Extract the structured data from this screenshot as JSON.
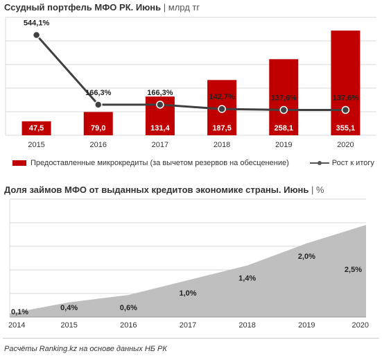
{
  "header": {
    "title1": "Ссудный портфель МФО РК. Июнь",
    "unit1": "млрд тг",
    "title2": "Доля займов МФО от выданных кредитов экономике страны. Июнь",
    "unit2": "%"
  },
  "legend": {
    "bar": "Предоставленные микрокредиты (за вычетом резервов на обесценение)",
    "line": "Рост к итогу"
  },
  "footer": {
    "source": "Расчёты Ranking.kz на основе данных НБ РК"
  },
  "colors": {
    "bar": "#c00000",
    "line": "#404040",
    "area": "#bfbfbf",
    "grid": "#d9d9d9"
  },
  "chart_data": [
    {
      "type": "bar",
      "categories": [
        "2015",
        "2016",
        "2017",
        "2018",
        "2019",
        "2020"
      ],
      "series": [
        {
          "name": "Предоставленные микрокредиты (за вычетом резервов на обесценение)",
          "type": "bar",
          "values": [
            47.5,
            79.0,
            131.4,
            187.5,
            258.1,
            355.1
          ],
          "labels": [
            "47,5",
            "79,0",
            "131,4",
            "187,5",
            "258,1",
            "355,1"
          ]
        },
        {
          "name": "Рост к итогу",
          "type": "line",
          "values": [
            544.1,
            166.3,
            166.3,
            142.7,
            137.6,
            137.6
          ],
          "labels": [
            "544,1%",
            "166,3%",
            "166,3%",
            "142,7%",
            "137,6%",
            "137,6%"
          ]
        }
      ],
      "title": "Ссудный портфель МФО РК. Июнь",
      "unit": "млрд тг",
      "ylim": [
        0,
        400
      ],
      "y2lim": [
        0,
        640
      ],
      "grid": true,
      "legend": "bottom"
    },
    {
      "type": "area",
      "categories": [
        "2014",
        "2015",
        "2016",
        "2017",
        "2018",
        "2019",
        "2020"
      ],
      "values": [
        0.1,
        0.4,
        0.6,
        1.0,
        1.4,
        2.0,
        2.5
      ],
      "labels": [
        "0,1%",
        "0,4%",
        "0,6%",
        "1,0%",
        "1,4%",
        "2,0%",
        "2,5%"
      ],
      "title": "Доля займов МФО от выданных кредитов экономике страны. Июнь",
      "unit": "%",
      "ylim": [
        0,
        3.2
      ],
      "grid": true
    }
  ]
}
